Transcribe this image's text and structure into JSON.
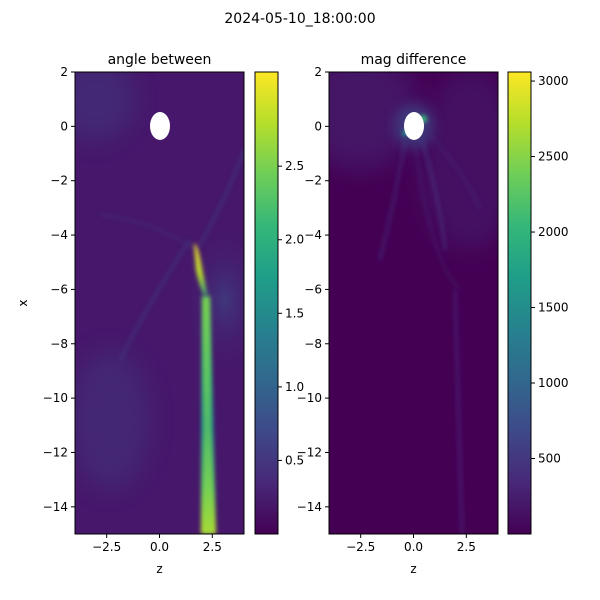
{
  "figure": {
    "suptitle": "2024-05-10_18:00:00"
  },
  "colors": {
    "viridis": [
      "#440154",
      "#482878",
      "#3e4989",
      "#31688e",
      "#26828e",
      "#1f9e89",
      "#35b779",
      "#6ece58",
      "#b5de2b",
      "#fde725"
    ],
    "mask": "#ffffff",
    "axis": "#000000"
  },
  "chart_data": [
    {
      "type": "heatmap",
      "title": "angle between",
      "xlabel": "z",
      "ylabel": "x",
      "xlim": [
        -4,
        4
      ],
      "ylim": [
        -15,
        2
      ],
      "xticks": [
        -2.5,
        0.0,
        2.5
      ],
      "xtick_labels": [
        "−2.5",
        "0.0",
        "2.5"
      ],
      "yticks": [
        2,
        0,
        -2,
        -4,
        -6,
        -8,
        -10,
        -12,
        -14
      ],
      "ytick_labels": [
        "2",
        "0",
        "−2",
        "−4",
        "−6",
        "−8",
        "−10",
        "−12",
        "−14"
      ],
      "colorbar": {
        "range": [
          0.0,
          3.14
        ],
        "ticks": [
          0.5,
          1.0,
          1.5,
          2.0,
          2.5
        ],
        "tick_labels": [
          "0.5",
          "1.0",
          "1.5",
          "2.0",
          "2.5"
        ]
      },
      "masked_region": {
        "z_center": 0.0,
        "x_center": 0.0,
        "z_radius": 0.45,
        "x_radius": 0.55
      },
      "features": [
        {
          "name": "bright streak",
          "z_top": 1.6,
          "x_top": -4.3,
          "z_bottom": 2.2,
          "x_bottom": -6.2,
          "value": 2.9
        },
        {
          "name": "tail",
          "z_top": 2.1,
          "x_top": -6.2,
          "z_bottom": 2.4,
          "x_bottom": -15.0,
          "value": 1.8
        }
      ]
    },
    {
      "type": "heatmap",
      "title": "mag difference",
      "xlabel": "z",
      "ylabel": "",
      "xlim": [
        -4,
        4
      ],
      "ylim": [
        -15,
        2
      ],
      "xticks": [
        -2.5,
        0.0,
        2.5
      ],
      "xtick_labels": [
        "−2.5",
        "0.0",
        "2.5"
      ],
      "yticks": [
        2,
        0,
        -2,
        -4,
        -6,
        -8,
        -10,
        -12,
        -14
      ],
      "ytick_labels": [
        "2",
        "0",
        "−2",
        "−4",
        "−6",
        "−8",
        "−10",
        "−12",
        "−14"
      ],
      "colorbar": {
        "range": [
          0,
          3060
        ],
        "ticks": [
          500,
          1000,
          1500,
          2000,
          2500,
          3000
        ],
        "tick_labels": [
          "500",
          "1000",
          "1500",
          "2000",
          "2500",
          "3000"
        ]
      },
      "masked_region": {
        "z_center": 0.0,
        "x_center": 0.0,
        "z_radius": 0.45,
        "x_radius": 0.55
      },
      "features": [
        {
          "name": "hot rim",
          "z_center": 0.2,
          "x_center": 0.1,
          "value": 2900
        },
        {
          "name": "faint lobes",
          "z_center": 0.5,
          "x_center": -3.0,
          "value": 500
        }
      ]
    }
  ]
}
